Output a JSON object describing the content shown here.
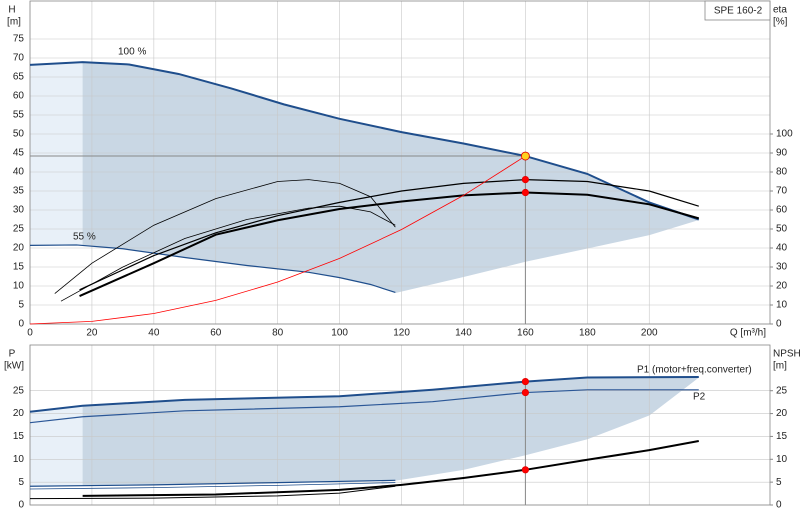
{
  "chart_data": [
    {
      "type": "line",
      "title": "SPE 160-2",
      "ylabel": "H",
      "yunit": "[m]",
      "y2label": "eta",
      "y2unit": "[%]",
      "xlabel": "Q [m³/h]",
      "xlim": [
        0,
        239
      ],
      "ylim": [
        0,
        85
      ],
      "y2lim": [
        0,
        170
      ],
      "xticks": [
        0,
        20,
        40,
        60,
        80,
        100,
        120,
        140,
        160,
        180,
        200
      ],
      "yticks": [
        0,
        5,
        10,
        15,
        20,
        25,
        30,
        35,
        40,
        45,
        50,
        55,
        60,
        65,
        70,
        75
      ],
      "y2ticks": [
        0,
        10,
        20,
        30,
        40,
        50,
        60,
        70,
        80,
        90,
        100
      ],
      "grid": true,
      "series": [
        {
          "name": "100 %",
          "color": "#1f4e8c",
          "width": 2,
          "x": [
            0,
            17,
            32,
            48,
            65,
            82,
            100,
            120,
            140,
            160,
            180,
            200,
            216
          ],
          "values": [
            68.2,
            68.9,
            68.3,
            65.8,
            62,
            57.8,
            54,
            50.5,
            47.5,
            44.2,
            39.5,
            32,
            27.5
          ]
        },
        {
          "name": "55 %",
          "color": "#1f4e8c",
          "width": 1.2,
          "x": [
            0,
            15,
            30,
            50,
            70,
            90,
            100,
            110,
            118
          ],
          "values": [
            20.7,
            20.8,
            19.8,
            17.5,
            15.4,
            13.6,
            12.2,
            10.4,
            8.3
          ]
        },
        {
          "color": "#000000",
          "width": 2,
          "axis": "y2",
          "x": [
            16,
            40,
            60,
            80,
            100,
            120,
            140,
            160,
            180,
            200,
            216
          ],
          "values": [
            14.7,
            32,
            47,
            54.6,
            60.5,
            64.5,
            67.7,
            69.2,
            68,
            63,
            55.6
          ]
        },
        {
          "color": "#000000",
          "width": 1.2,
          "axis": "y2",
          "x": [
            16,
            40,
            60,
            80,
            100,
            120,
            140,
            160,
            180,
            200,
            216
          ],
          "values": [
            18,
            36,
            48,
            57,
            64,
            70,
            74,
            76,
            75,
            70,
            62
          ]
        },
        {
          "color": "#000000",
          "width": 0.8,
          "axis": "y2",
          "x": [
            8,
            20,
            40,
            60,
            80,
            90,
            100,
            110,
            118
          ],
          "values": [
            16,
            32,
            52,
            66,
            75,
            76,
            74,
            67,
            51
          ]
        },
        {
          "color": "#000000",
          "width": 0.8,
          "axis": "y2",
          "x": [
            10,
            30,
            50,
            70,
            90,
            100,
            110,
            118
          ],
          "values": [
            12,
            30,
            45,
            55,
            61,
            62,
            59,
            52
          ]
        },
        {
          "color": "#ff0000",
          "width": 0.8,
          "x": [
            0,
            20,
            40,
            60,
            80,
            100,
            120,
            140,
            160
          ],
          "values": [
            0,
            0.69,
            2.76,
            6.22,
            11.05,
            17.27,
            24.86,
            33.84,
            44.2
          ]
        }
      ],
      "band": {
        "color": "#c9d7e4",
        "x": [
          118,
          140,
          160,
          180,
          200,
          216
        ],
        "values": [
          8.3,
          12.5,
          16.5,
          20,
          23.5,
          27.5
        ]
      },
      "points": [
        {
          "x": 160,
          "value": 44.2,
          "color": "#ffd21f"
        },
        {
          "x": 160,
          "value": 76,
          "axis": "y2",
          "color": "#ff0000"
        },
        {
          "x": 160,
          "value": 69.2,
          "axis": "y2",
          "color": "#ff0000"
        }
      ]
    },
    {
      "type": "line",
      "ylabel": "P",
      "yunit": "[kW]",
      "y2label": "NPSH",
      "y2unit": "[m]",
      "xlim": [
        0,
        239
      ],
      "ylim": [
        0,
        35
      ],
      "y2lim": [
        0,
        35
      ],
      "yticks": [
        0,
        5,
        10,
        15,
        20,
        25
      ],
      "y2ticks": [
        0,
        5,
        10,
        15,
        20,
        25
      ],
      "grid": true,
      "series": [
        {
          "name": "P1 (motor+freq.converter)",
          "color": "#1f4e8c",
          "width": 2,
          "x": [
            0,
            17,
            50,
            100,
            130,
            160,
            180,
            216
          ],
          "values": [
            20.4,
            21.7,
            23,
            23.8,
            25.2,
            27,
            27.9,
            28
          ]
        },
        {
          "name": "P2",
          "color": "#2b5797",
          "width": 1.2,
          "x": [
            0,
            17,
            50,
            100,
            130,
            160,
            180,
            216
          ],
          "values": [
            18,
            19.3,
            20.6,
            21.5,
            22.6,
            24.6,
            25.2,
            25.2
          ]
        },
        {
          "color": "#1f4e8c",
          "width": 1.2,
          "x": [
            0,
            40,
            80,
            118
          ],
          "values": [
            4.1,
            4.4,
            4.9,
            5.4
          ]
        },
        {
          "color": "#1f4e8c",
          "width": 0.8,
          "x": [
            0,
            40,
            80,
            118
          ],
          "values": [
            3.5,
            3.8,
            4.3,
            4.9
          ]
        },
        {
          "color": "#000000",
          "width": 2,
          "axis": "y2",
          "x": [
            17,
            60,
            100,
            120,
            140,
            160,
            180,
            200,
            216
          ],
          "values": [
            2,
            2.3,
            3.3,
            4.4,
            5.9,
            7.7,
            9.9,
            12,
            14
          ]
        },
        {
          "color": "#000000",
          "width": 1,
          "axis": "y2",
          "x": [
            0,
            40,
            80,
            100,
            118
          ],
          "values": [
            1.4,
            1.5,
            2,
            2.6,
            4.1
          ]
        }
      ],
      "band": {
        "color": "#c9d7e4",
        "x": [
          118,
          140,
          160,
          180,
          200,
          216
        ],
        "values": [
          5.4,
          7.8,
          11,
          14.5,
          19.7,
          28
        ]
      },
      "points": [
        {
          "x": 160,
          "value": 27,
          "color": "#ff0000"
        },
        {
          "x": 160,
          "value": 24.6,
          "color": "#ff0000"
        },
        {
          "x": 160,
          "value": 7.7,
          "axis": "y2",
          "color": "#ff0000"
        }
      ]
    }
  ]
}
